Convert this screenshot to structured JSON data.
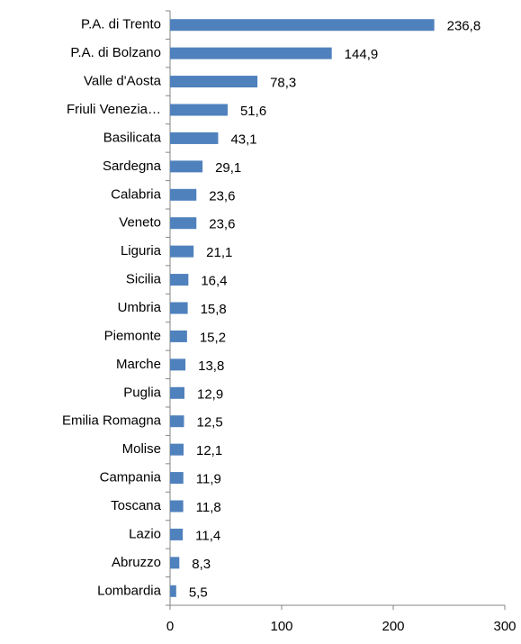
{
  "chart_data": {
    "type": "bar",
    "orientation": "horizontal",
    "categories": [
      "P.A. di Trento",
      "P.A. di Bolzano",
      "Valle d'Aosta",
      "Friuli Venezia…",
      "Basilicata",
      "Sardegna",
      "Calabria",
      "Veneto",
      "Liguria",
      "Sicilia",
      "Umbria",
      "Piemonte",
      "Marche",
      "Puglia",
      "Emilia Romagna",
      "Molise",
      "Campania",
      "Toscana",
      "Lazio",
      "Abruzzo",
      "Lombardia"
    ],
    "values": [
      236.8,
      144.9,
      78.3,
      51.6,
      43.1,
      29.1,
      23.6,
      23.6,
      21.1,
      16.4,
      15.8,
      15.2,
      13.8,
      12.9,
      12.5,
      12.1,
      11.9,
      11.8,
      11.4,
      8.3,
      5.5
    ],
    "value_labels": [
      "236,8",
      "144,9",
      "78,3",
      "51,6",
      "43,1",
      "29,1",
      "23,6",
      "23,6",
      "21,1",
      "16,4",
      "15,8",
      "15,2",
      "13,8",
      "12,9",
      "12,5",
      "12,1",
      "11,9",
      "11,8",
      "11,4",
      "8,3",
      "5,5"
    ],
    "color": "#4f81bd",
    "xlim": [
      0,
      300
    ],
    "xticks": [
      0,
      100,
      200,
      300
    ],
    "grid": false
  }
}
